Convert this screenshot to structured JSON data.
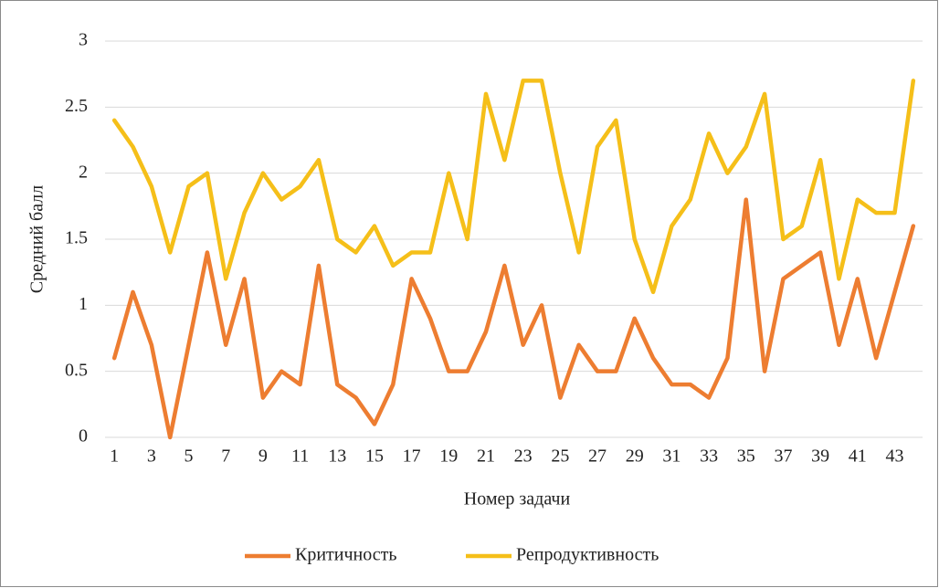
{
  "chart_data": {
    "type": "line",
    "x_label": "Номер задачи",
    "y_label": "Средний балл",
    "categories": [
      "1",
      null,
      "3",
      null,
      "5",
      null,
      "7",
      null,
      "9",
      null,
      "11",
      null,
      "13",
      null,
      "15",
      null,
      "17",
      null,
      "19",
      null,
      "21",
      null,
      "23",
      null,
      "25",
      null,
      "27",
      null,
      "29",
      null,
      "31",
      null,
      "33",
      null,
      "35",
      null,
      "37",
      null,
      "39",
      null,
      "41",
      null,
      "43",
      null
    ],
    "series": [
      {
        "name": "Критичность",
        "color": "#ed7d31",
        "values": [
          0.6,
          1.1,
          0.7,
          0,
          0.7,
          1.4,
          0.7,
          1.2,
          0.3,
          0.5,
          0.4,
          1.3,
          0.4,
          0.3,
          0.1,
          0.4,
          1.2,
          0.9,
          0.5,
          0.5,
          0.8,
          1.3,
          0.7,
          1.0,
          0.3,
          0.7,
          0.5,
          0.5,
          0.9,
          0.6,
          0.4,
          0.4,
          0.3,
          0.6,
          1.8,
          0.5,
          1.2,
          1.3,
          1.4,
          0.7,
          1.2,
          0.6,
          1.1,
          1.6
        ]
      },
      {
        "name": "Репродуктивность",
        "color": "#f5bf19",
        "values": [
          2.4,
          2.2,
          1.9,
          1.4,
          1.9,
          2.0,
          1.2,
          1.7,
          2.0,
          1.8,
          1.9,
          2.1,
          1.5,
          1.4,
          1.6,
          1.3,
          1.4,
          1.4,
          2.0,
          1.5,
          2.6,
          2.1,
          2.7,
          2.7,
          2.0,
          1.4,
          2.2,
          2.4,
          1.5,
          1.1,
          1.6,
          1.8,
          2.3,
          2.0,
          2.2,
          2.6,
          1.5,
          1.6,
          2.1,
          1.2,
          1.8,
          1.7,
          1.7,
          2.7
        ]
      }
    ],
    "ylim": [
      0,
      3
    ],
    "yticks": [
      0,
      0.5,
      1,
      1.5,
      2,
      2.5,
      3
    ],
    "grid": true,
    "legend": "bottom"
  }
}
